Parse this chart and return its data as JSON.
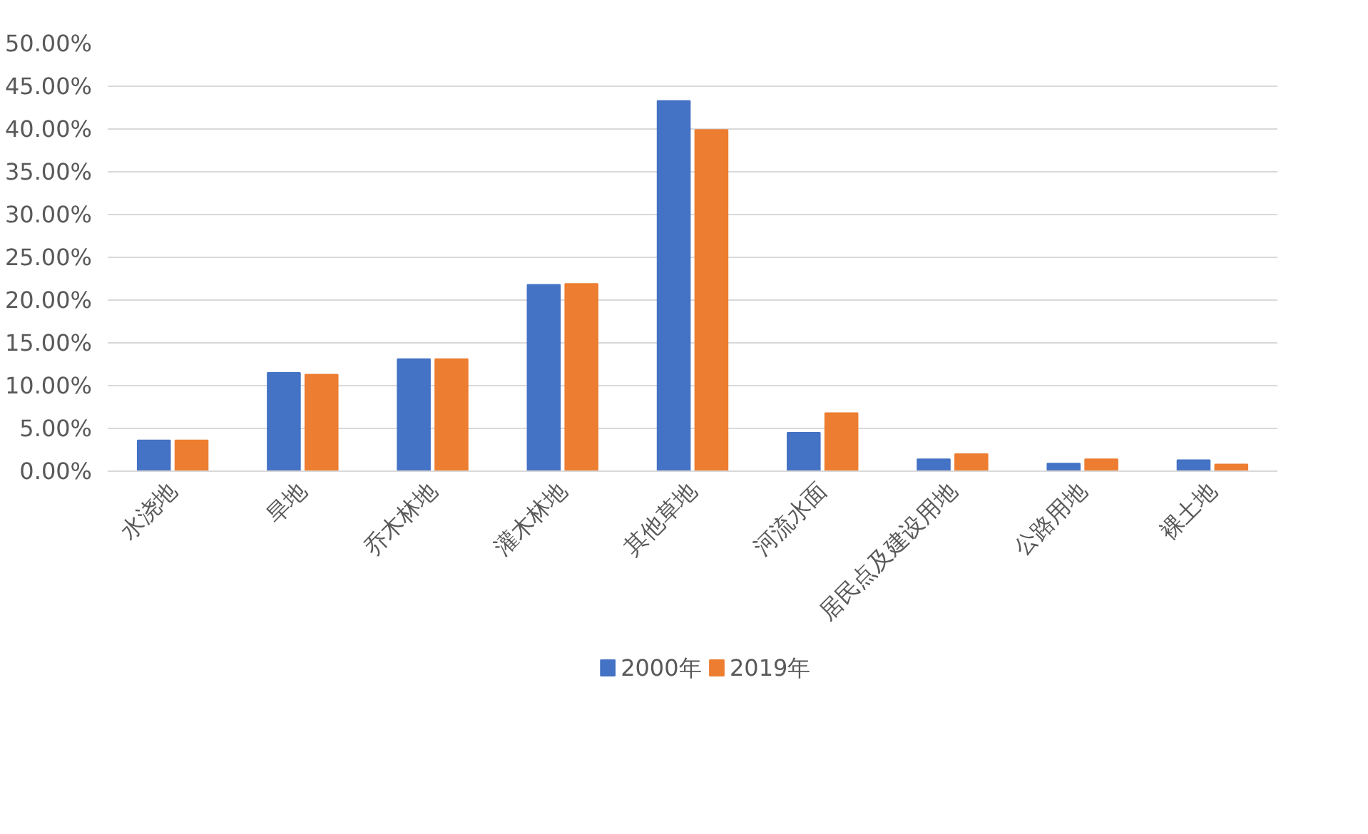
{
  "chart_data": {
    "type": "bar",
    "categories": [
      "水浇地",
      "旱地",
      "乔木林地",
      "灌木林地",
      "其他草地",
      "河流水面",
      "居民点及建设用地",
      "公路用地",
      "裸土地"
    ],
    "series": [
      {
        "name": "2000年",
        "color": "#4472c4",
        "values": [
          3.6,
          11.5,
          13.1,
          21.8,
          43.3,
          4.5,
          1.4,
          0.9,
          1.3
        ]
      },
      {
        "name": "2019年",
        "color": "#ed7d31",
        "values": [
          3.6,
          11.3,
          13.1,
          21.9,
          39.9,
          6.8,
          2.0,
          1.4,
          0.8
        ]
      }
    ],
    "ylim": [
      0,
      50
    ],
    "yticks": [
      {
        "value": 0,
        "label": "0.00%"
      },
      {
        "value": 5,
        "label": "5.00%"
      },
      {
        "value": 10,
        "label": "10.00%"
      },
      {
        "value": 15,
        "label": "15.00%"
      },
      {
        "value": 20,
        "label": "20.00%"
      },
      {
        "value": 25,
        "label": "25.00%"
      },
      {
        "value": 30,
        "label": "30.00%"
      },
      {
        "value": 35,
        "label": "35.00%"
      },
      {
        "value": 40,
        "label": "40.00%"
      },
      {
        "value": 45,
        "label": "45.00%"
      },
      {
        "value": 50,
        "label": "50.00%"
      }
    ],
    "grid": "y",
    "legend": "bottom"
  }
}
